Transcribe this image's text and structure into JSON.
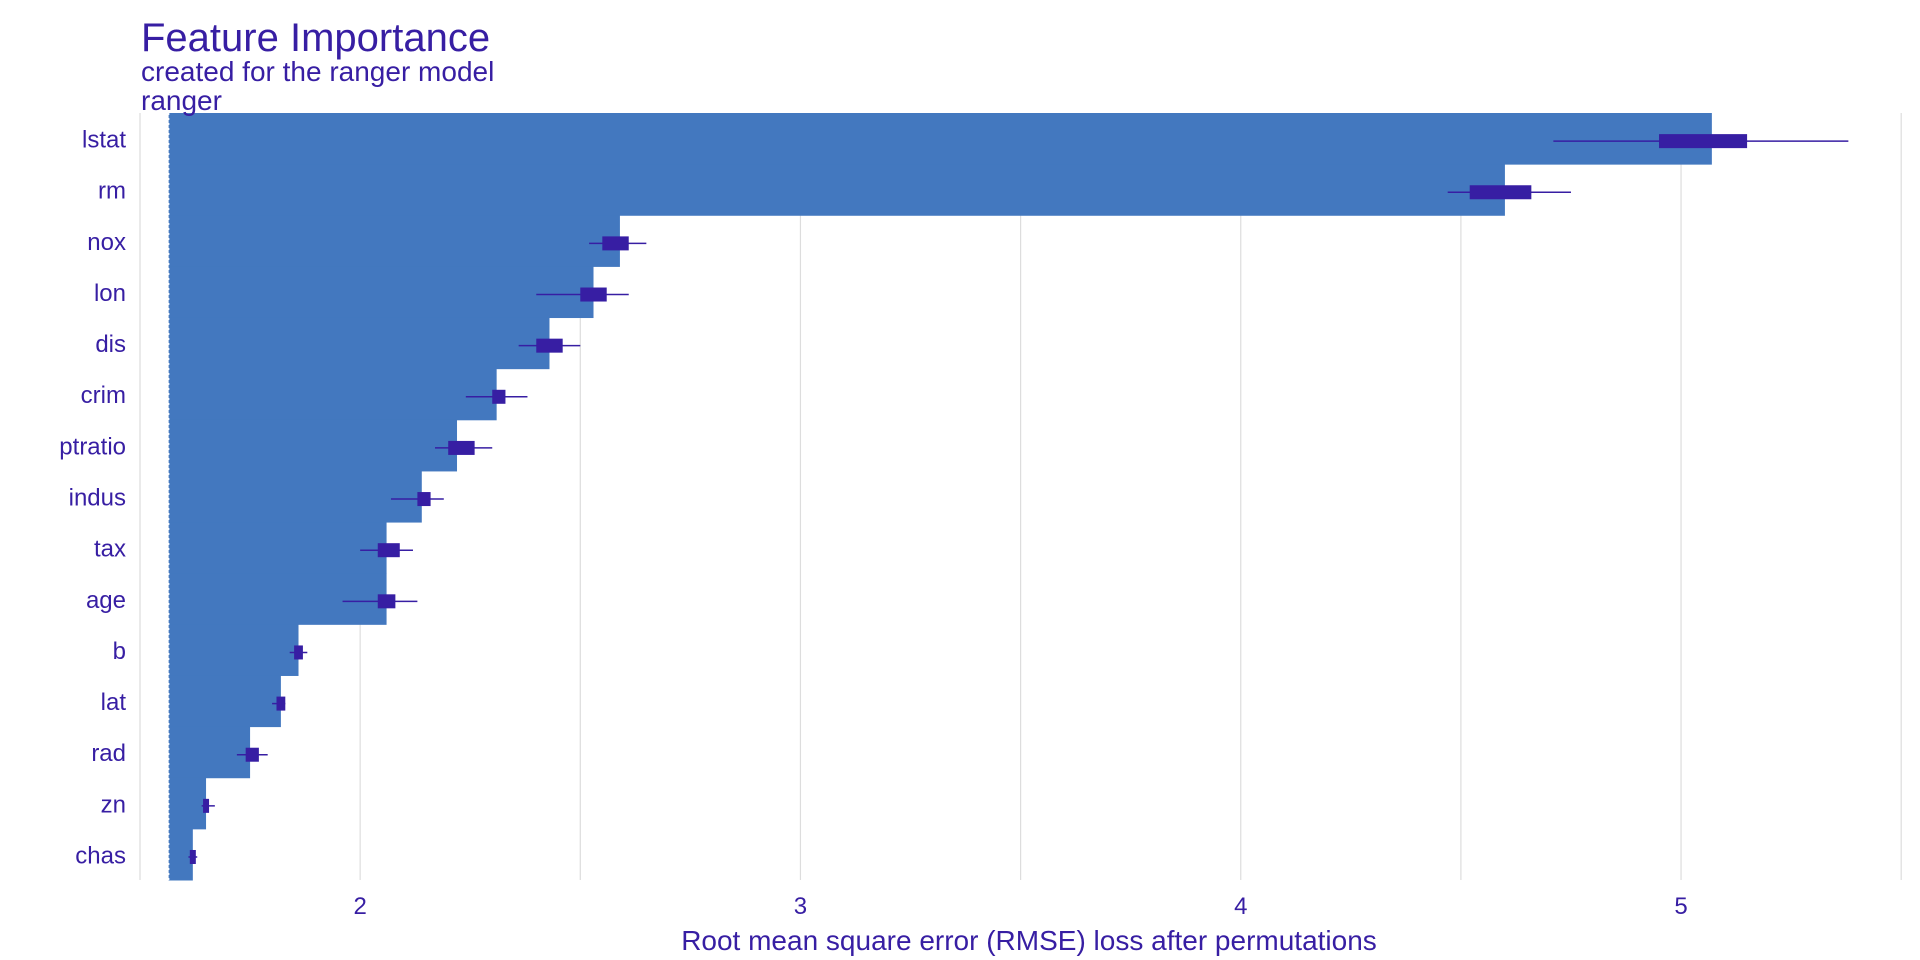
{
  "chart_data": {
    "type": "bar",
    "title": "Feature Importance",
    "subtitle": "created for the ranger model",
    "model_label": "ranger",
    "xlabel": "Root mean square error (RMSE) loss after permutations",
    "ylabel": "",
    "baseline": 1.565,
    "xlim": [
      1.5,
      5.52
    ],
    "xticks": [
      2,
      3,
      4,
      5
    ],
    "minor_gridlines": [
      1.5,
      2.5,
      3.5,
      4.5,
      5.5
    ],
    "grid": true,
    "bar_color": "#4378bf",
    "boxplot_color": "#371ea3",
    "text_color": "#371ea3",
    "grid_color": "#dddddd",
    "categories": [
      "lstat",
      "rm",
      "nox",
      "lon",
      "dis",
      "crim",
      "ptratio",
      "indus",
      "tax",
      "age",
      "b",
      "lat",
      "rad",
      "zn",
      "chas"
    ],
    "values": [
      5.07,
      4.6,
      2.59,
      2.53,
      2.43,
      2.31,
      2.22,
      2.14,
      2.06,
      2.06,
      1.86,
      1.82,
      1.75,
      1.65,
      1.62
    ],
    "boxplots": [
      {
        "min": 4.71,
        "q1": 4.95,
        "median": 5.05,
        "q3": 5.15,
        "max": 5.38
      },
      {
        "min": 4.47,
        "q1": 4.52,
        "median": 4.6,
        "q3": 4.66,
        "max": 4.75
      },
      {
        "min": 2.52,
        "q1": 2.55,
        "median": 2.58,
        "q3": 2.61,
        "max": 2.65
      },
      {
        "min": 2.4,
        "q1": 2.5,
        "median": 2.53,
        "q3": 2.56,
        "max": 2.61
      },
      {
        "min": 2.36,
        "q1": 2.4,
        "median": 2.43,
        "q3": 2.46,
        "max": 2.5
      },
      {
        "min": 2.24,
        "q1": 2.3,
        "median": 2.31,
        "q3": 2.33,
        "max": 2.38
      },
      {
        "min": 2.17,
        "q1": 2.2,
        "median": 2.22,
        "q3": 2.26,
        "max": 2.3
      },
      {
        "min": 2.07,
        "q1": 2.13,
        "median": 2.14,
        "q3": 2.16,
        "max": 2.19
      },
      {
        "min": 2.0,
        "q1": 2.04,
        "median": 2.06,
        "q3": 2.09,
        "max": 2.12
      },
      {
        "min": 1.96,
        "q1": 2.04,
        "median": 2.06,
        "q3": 2.08,
        "max": 2.13
      },
      {
        "min": 1.84,
        "q1": 1.85,
        "median": 1.86,
        "q3": 1.87,
        "max": 1.88
      },
      {
        "min": 1.8,
        "q1": 1.81,
        "median": 1.82,
        "q3": 1.83,
        "max": 1.83
      },
      {
        "min": 1.72,
        "q1": 1.74,
        "median": 1.75,
        "q3": 1.77,
        "max": 1.79
      },
      {
        "min": 1.64,
        "q1": 1.645,
        "median": 1.65,
        "q3": 1.655,
        "max": 1.67
      },
      {
        "min": 1.61,
        "q1": 1.615,
        "median": 1.62,
        "q3": 1.625,
        "max": 1.63
      }
    ]
  }
}
